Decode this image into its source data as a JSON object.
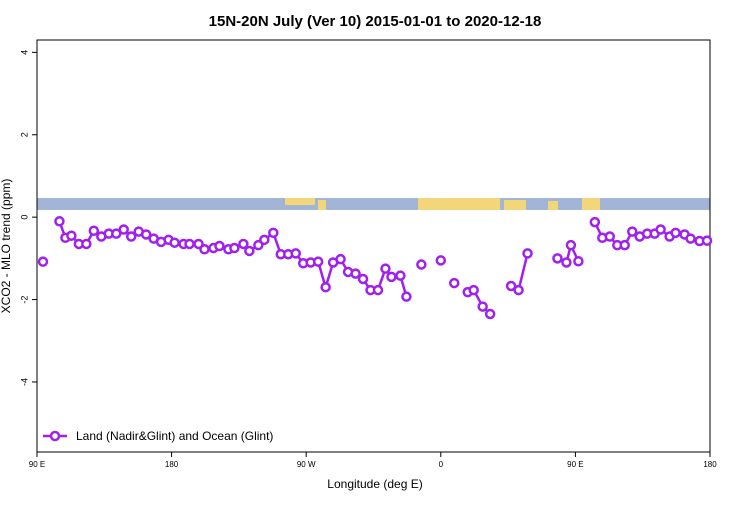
{
  "chart_data": {
    "type": "line",
    "title": "15N-20N July (Ver 10)   2015-01-01 to 2020-12-18",
    "x_label": "Longitude (deg E)",
    "y_label": "XCO2 - MLO trend (ppm)",
    "xlim": [
      90,
      540
    ],
    "xticks": [
      {
        "value": 90,
        "label": "90 E"
      },
      {
        "value": 180,
        "label": "180"
      },
      {
        "value": 270,
        "label": "90 W"
      },
      {
        "value": 360,
        "label": "0"
      },
      {
        "value": 450,
        "label": "90 E"
      },
      {
        "value": 540,
        "label": "180"
      }
    ],
    "ylim": [
      -5.7,
      4.3
    ],
    "yticks": [
      -4,
      -2,
      0,
      2,
      4
    ],
    "legend": "bottom-left",
    "series": [
      {
        "name": "Land (Nadir&Glint) and Ocean (Glint)",
        "color": "#a020f0",
        "x": [
          94,
          100,
          105,
          109,
          113,
          118,
          123,
          128,
          133,
          138,
          143,
          148,
          153,
          158,
          163,
          168,
          173,
          178,
          182,
          188,
          192,
          198,
          202,
          208,
          212,
          218,
          222,
          228,
          232,
          238,
          242,
          248,
          253,
          258,
          263,
          268,
          273,
          278,
          283,
          288,
          293,
          298,
          303,
          308,
          313,
          318,
          323,
          327,
          333,
          337,
          342,
          347,
          352,
          360,
          365,
          369,
          374,
          378,
          382,
          388,
          393,
          400,
          407,
          412,
          418,
          430,
          438,
          444,
          447,
          452,
          458,
          463,
          468,
          473,
          478,
          483,
          488,
          493,
          498,
          503,
          507,
          513,
          517,
          523,
          527,
          533,
          538
        ],
        "values": [
          -1.08,
          null,
          -0.1,
          -0.5,
          -0.45,
          -0.65,
          -0.65,
          -0.33,
          -0.47,
          -0.4,
          -0.4,
          -0.3,
          -0.47,
          -0.35,
          -0.42,
          -0.52,
          -0.6,
          -0.55,
          -0.62,
          -0.65,
          -0.65,
          -0.65,
          -0.78,
          -0.75,
          -0.7,
          -0.78,
          -0.75,
          -0.65,
          -0.82,
          -0.68,
          -0.55,
          -0.38,
          -0.9,
          -0.9,
          -0.88,
          -1.12,
          -1.1,
          -1.08,
          -1.7,
          -1.1,
          -1.02,
          -1.33,
          -1.37,
          -1.5,
          -1.77,
          -1.77,
          -1.25,
          -1.45,
          -1.42,
          -1.93,
          null,
          -1.15,
          null,
          -1.05,
          null,
          -1.6,
          null,
          -1.82,
          -1.77,
          -2.17,
          -2.35,
          null,
          -1.67,
          -1.77,
          -0.88,
          null,
          -1.0,
          -1.1,
          -0.68,
          -1.07,
          null,
          -0.12,
          -0.5,
          -0.47,
          -0.68,
          -0.68,
          -0.35,
          -0.47,
          -0.4,
          -0.4,
          -0.3,
          -0.47,
          -0.38,
          -0.42,
          -0.52,
          -0.58,
          -0.57
        ]
      }
    ]
  }
}
